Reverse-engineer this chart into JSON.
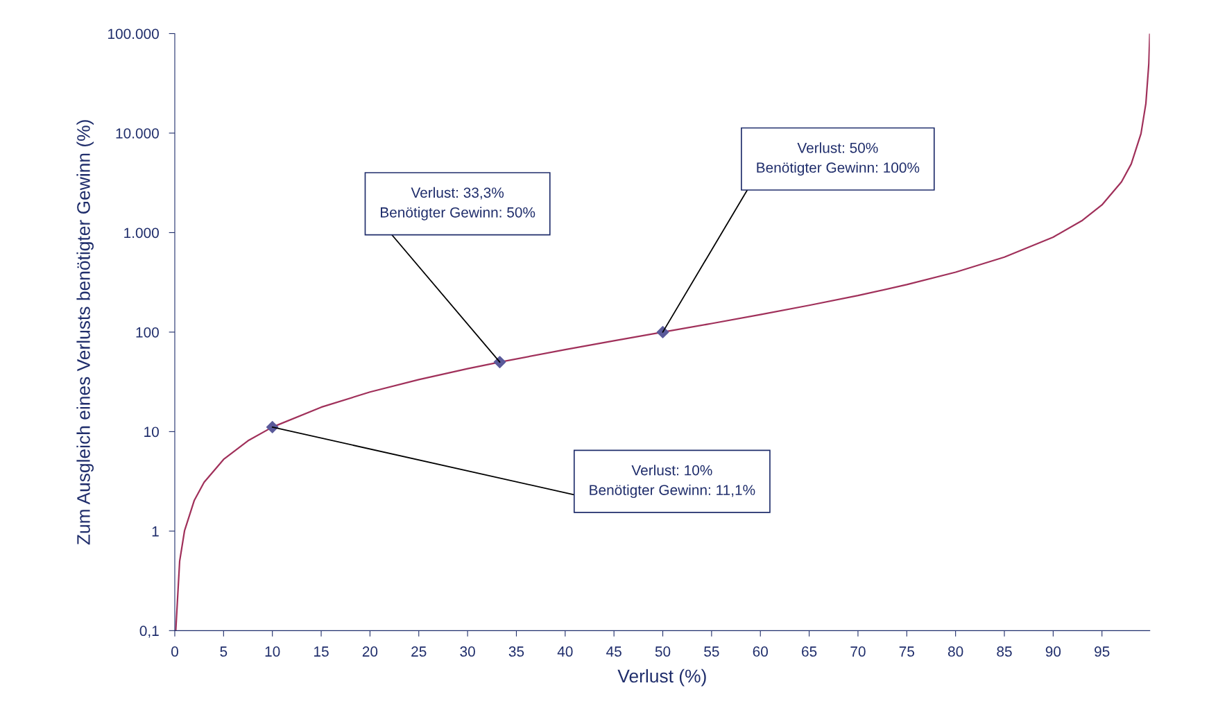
{
  "chart_data": {
    "type": "line",
    "xlabel": "Verlust (%)",
    "ylabel": "Zum Ausgleich eines Verlusts benötigter Gewinn (%)",
    "log": "y",
    "grid": false,
    "legend": false,
    "line_style": "solid",
    "xlim": [
      0,
      99.9
    ],
    "xticks": [
      0,
      5,
      10,
      15,
      20,
      25,
      30,
      35,
      40,
      45,
      50,
      55,
      60,
      65,
      70,
      75,
      80,
      85,
      90,
      95
    ],
    "ylim": [
      0.1,
      100000
    ],
    "yticks": [
      {
        "value": 0.1,
        "label": "0,1"
      },
      1,
      10,
      100,
      {
        "value": 1000,
        "label": "1.000"
      },
      {
        "value": 10000,
        "label": "10.000"
      },
      {
        "value": 100000,
        "label": "100.000"
      }
    ],
    "series": [
      {
        "type": "line",
        "color": "#a0305a",
        "marker": "none",
        "x": [
          0.1,
          0.5,
          1,
          2,
          3,
          5,
          7.5,
          10,
          15,
          20,
          25,
          30,
          33.3,
          40,
          45,
          50,
          55,
          60,
          65,
          70,
          75,
          80,
          85,
          90,
          93,
          95,
          97,
          98,
          99,
          99.5,
          99.8,
          99.9
        ],
        "values": [
          0.1,
          0.5,
          1.01,
          2.04,
          3.09,
          5.26,
          8.1,
          11.1,
          17.6,
          25,
          33.3,
          42.9,
          50,
          66.7,
          81.8,
          100,
          122,
          150,
          186,
          233,
          300,
          400,
          567,
          900,
          1329,
          1900,
          3233,
          4900,
          9900,
          19900,
          49900,
          99900
        ]
      },
      {
        "type": "scatter",
        "color": "#5a5a9a",
        "marker": "diamond",
        "x": [
          10,
          33.3,
          50
        ],
        "values": [
          11.1,
          50,
          100
        ]
      }
    ],
    "annotations": [
      {
        "text": "Verlust: 10%\nBenötigter Gewinn: 11,1%",
        "x": 10,
        "y": 11.1
      },
      {
        "text": "Verlust: 33,3%\nBenötigter Gewinn: 50%",
        "x": 33.3,
        "y": 50
      },
      {
        "text": "Verlust: 50%\nBenötigter Gewinn: 100%",
        "x": 50,
        "y": 100
      }
    ]
  }
}
